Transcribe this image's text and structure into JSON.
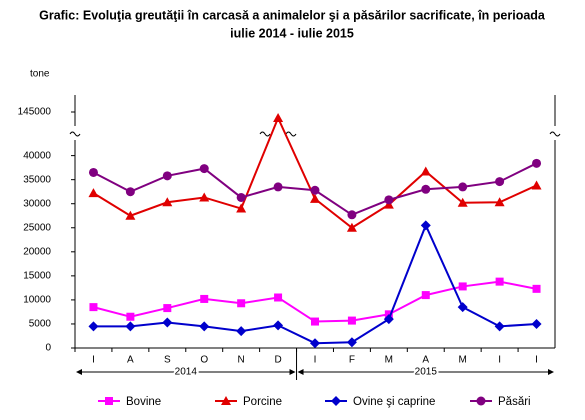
{
  "chart_data": {
    "type": "line",
    "title": [
      "Grafic: Evoluţia greutăţii în carcasă a animalelor şi a păsărilor sacrificate, în perioada",
      "iulie 2014 - iulie 2015"
    ],
    "y_label": "tone",
    "categories": [
      "I",
      "A",
      "S",
      "O",
      "N",
      "D",
      "I",
      "F",
      "M",
      "A",
      "M",
      "I",
      "I"
    ],
    "years": [
      "2014",
      "2015"
    ],
    "ylim": [
      0,
      42000
    ],
    "ylim_upper": [
      142000,
      146000
    ],
    "yticks": [
      0,
      5000,
      10000,
      15000,
      20000,
      25000,
      30000,
      35000,
      40000,
      145000
    ],
    "axis_break": true,
    "legend": "bottom",
    "series": [
      {
        "name": "Bovine",
        "color": "#ff00ff",
        "marker": "square",
        "values": [
          8500,
          6500,
          8300,
          10200,
          9300,
          10500,
          5500,
          5700,
          7000,
          11000,
          12800,
          13800,
          12300
        ]
      },
      {
        "name": "Porcine",
        "color": "#e00000",
        "marker": "triangle",
        "values": [
          32200,
          27500,
          30300,
          31300,
          29000,
          144000,
          31000,
          25000,
          29800,
          36700,
          30200,
          30300,
          33800
        ]
      },
      {
        "name": "Ovine şi caprine",
        "color": "#0000cc",
        "marker": "diamond",
        "values": [
          4500,
          4500,
          5300,
          4500,
          3500,
          4700,
          1000,
          1200,
          6000,
          25500,
          8500,
          4500,
          5000
        ]
      },
      {
        "name": "Păsări",
        "color": "#800080",
        "marker": "circle",
        "values": [
          36500,
          32500,
          35800,
          37300,
          31300,
          33500,
          32800,
          27700,
          30800,
          33000,
          33500,
          34600,
          38400
        ]
      }
    ]
  }
}
